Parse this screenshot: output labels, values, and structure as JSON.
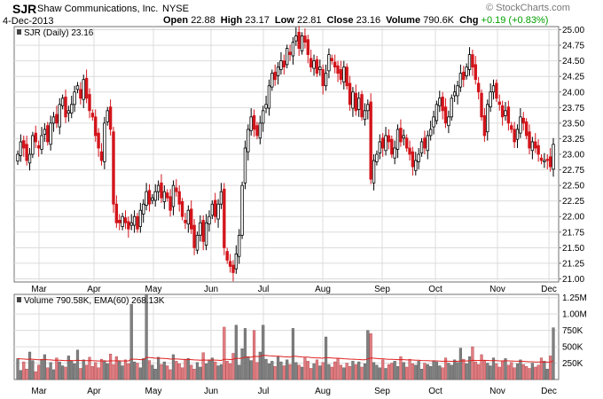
{
  "header": {
    "symbol": "SJR",
    "company": "Shaw Communications, Inc.",
    "exchange": "NYSE",
    "date": "4-Dec-2013",
    "brand": "© StockCharts.com",
    "open_label": "Open",
    "open": "22.88",
    "high_label": "High",
    "high": "23.17",
    "low_label": "Low",
    "low": "22.81",
    "close_label": "Close",
    "close": "23.16",
    "volume_label": "Volume",
    "volume": "790.6K",
    "chg_label": "Chg",
    "chg": "+0.19 (+0.83%)",
    "chg_color": "#00a000"
  },
  "price_panel": {
    "legend": "SJR (Daily) 23.16"
  },
  "volume_panel": {
    "legend": "Volume 790.58K, EMA(60) 268.13K"
  },
  "colors": {
    "up": "#000000",
    "down": "#d3141b",
    "vol_up": "#808080",
    "vol_down": "#e07c80",
    "ema": "#e02020",
    "grid": "#dcdcdc",
    "frame": "#707070"
  },
  "chart_data": [
    {
      "type": "candlestick",
      "title": "SJR (Daily) 23.16",
      "x_labels": [
        "Mar",
        "Apr",
        "May",
        "Jun",
        "Jul",
        "Aug",
        "Sep",
        "Oct",
        "Nov",
        "Dec"
      ],
      "y_ticks": [
        "21.00",
        "21.25",
        "21.50",
        "21.75",
        "22.00",
        "22.25",
        "22.50",
        "22.75",
        "23.00",
        "23.25",
        "23.50",
        "23.75",
        "24.00",
        "24.25",
        "24.50",
        "24.75",
        "25.00"
      ],
      "ylim": [
        20.95,
        25.05
      ],
      "y_axis_side": "right",
      "grid": true,
      "closes": [
        23.0,
        23.2,
        23.1,
        22.9,
        23.0,
        23.3,
        23.2,
        23.1,
        23.3,
        23.4,
        23.2,
        23.5,
        23.6,
        23.5,
        23.8,
        23.9,
        23.6,
        23.7,
        23.8,
        24.0,
        24.1,
        23.9,
        24.2,
        23.9,
        23.7,
        23.6,
        23.3,
        23.1,
        22.9,
        23.5,
        23.7,
        23.4,
        22.2,
        21.9,
        21.9,
        22.0,
        21.9,
        21.8,
        21.9,
        22.0,
        21.8,
        22.1,
        22.2,
        22.4,
        22.2,
        22.3,
        22.4,
        22.5,
        22.3,
        22.4,
        22.3,
        22.1,
        22.5,
        22.4,
        22.2,
        22.0,
        21.9,
        22.1,
        21.8,
        21.5,
        21.7,
        21.9,
        21.6,
        21.9,
        22.0,
        22.2,
        22.0,
        22.2,
        22.4,
        21.5,
        21.3,
        21.2,
        21.1,
        21.4,
        21.7,
        22.5,
        23.1,
        23.4,
        23.6,
        23.4,
        23.3,
        23.5,
        23.7,
        23.8,
        24.1,
        24.3,
        24.2,
        24.4,
        24.5,
        24.4,
        24.7,
        24.6,
        24.8,
        24.9,
        24.7,
        24.9,
        24.8,
        24.6,
        24.4,
        24.5,
        24.3,
        24.4,
        24.1,
        24.3,
        24.6,
        24.5,
        24.4,
        24.3,
        24.2,
        24.4,
        24.1,
        23.8,
        24.0,
        23.7,
        23.9,
        23.6,
        23.7,
        23.8,
        22.6,
        22.9,
        23.0,
        23.2,
        23.1,
        23.3,
        23.2,
        23.0,
        23.1,
        23.4,
        23.2,
        23.3,
        23.1,
        23.0,
        22.8,
        22.9,
        23.0,
        23.2,
        23.1,
        23.3,
        23.4,
        23.6,
        23.8,
        23.9,
        23.7,
        23.5,
        23.6,
        23.9,
        24.0,
        24.1,
        24.3,
        24.2,
        24.4,
        24.6,
        24.4,
        24.2,
        24.0,
        23.6,
        23.3,
        23.8,
        24.0,
        24.1,
        23.9,
        23.8,
        23.6,
        23.7,
        23.5,
        23.4,
        23.2,
        23.4,
        23.6,
        23.5,
        23.3,
        23.1,
        23.2,
        23.1,
        23.0,
        22.9,
        22.9,
        22.9,
        22.8,
        23.16
      ]
    },
    {
      "type": "bar",
      "title": "Volume 790.58K, EMA(60) 268.13K",
      "x_labels": [
        "Mar",
        "Apr",
        "May",
        "Jun",
        "Jul",
        "Aug",
        "Sep",
        "Oct",
        "Nov",
        "Dec"
      ],
      "y_ticks": [
        "250K",
        "500K",
        "750K",
        "1.00M",
        "1.25M"
      ],
      "ylim": [
        0,
        1300000
      ],
      "ema_period": 60,
      "volumes": [
        320000,
        140000,
        270000,
        160000,
        420000,
        290000,
        120000,
        220000,
        310000,
        380000,
        180000,
        260000,
        150000,
        330000,
        270000,
        210000,
        190000,
        360000,
        280000,
        240000,
        450000,
        170000,
        300000,
        220000,
        340000,
        200000,
        260000,
        180000,
        310000,
        290000,
        240000,
        390000,
        230000,
        350000,
        280000,
        210000,
        300000,
        240000,
        1150000,
        270000,
        250000,
        180000,
        320000,
        1300000,
        290000,
        220000,
        160000,
        340000,
        230000,
        270000,
        210000,
        150000,
        380000,
        280000,
        240000,
        180000,
        300000,
        320000,
        220000,
        160000,
        260000,
        190000,
        410000,
        240000,
        300000,
        330000,
        270000,
        210000,
        230000,
        800000,
        280000,
        240000,
        400000,
        830000,
        220000,
        470000,
        780000,
        350000,
        290000,
        750000,
        260000,
        420000,
        830000,
        310000,
        240000,
        280000,
        200000,
        350000,
        270000,
        210000,
        300000,
        230000,
        780000,
        260000,
        220000,
        190000,
        330000,
        280000,
        170000,
        240000,
        300000,
        210000,
        260000,
        650000,
        230000,
        190000,
        270000,
        320000,
        220000,
        180000,
        250000,
        200000,
        280000,
        230000,
        270000,
        190000,
        240000,
        750000,
        700000,
        260000,
        220000,
        180000,
        300000,
        170000,
        230000,
        250000,
        280000,
        200000,
        350000,
        260000,
        190000,
        310000,
        240000,
        220000,
        280000,
        160000,
        250000,
        230000,
        200000,
        290000,
        270000,
        210000,
        180000,
        330000,
        250000,
        220000,
        300000,
        260000,
        480000,
        310000,
        240000,
        350000,
        500000,
        270000,
        230000,
        380000,
        290000,
        250000,
        210000,
        330000,
        240000,
        190000,
        280000,
        320000,
        220000,
        260000,
        180000,
        240000,
        300000,
        230000,
        200000,
        170000,
        250000,
        190000,
        220000,
        330000,
        280000,
        160000,
        360000,
        790580
      ]
    }
  ]
}
